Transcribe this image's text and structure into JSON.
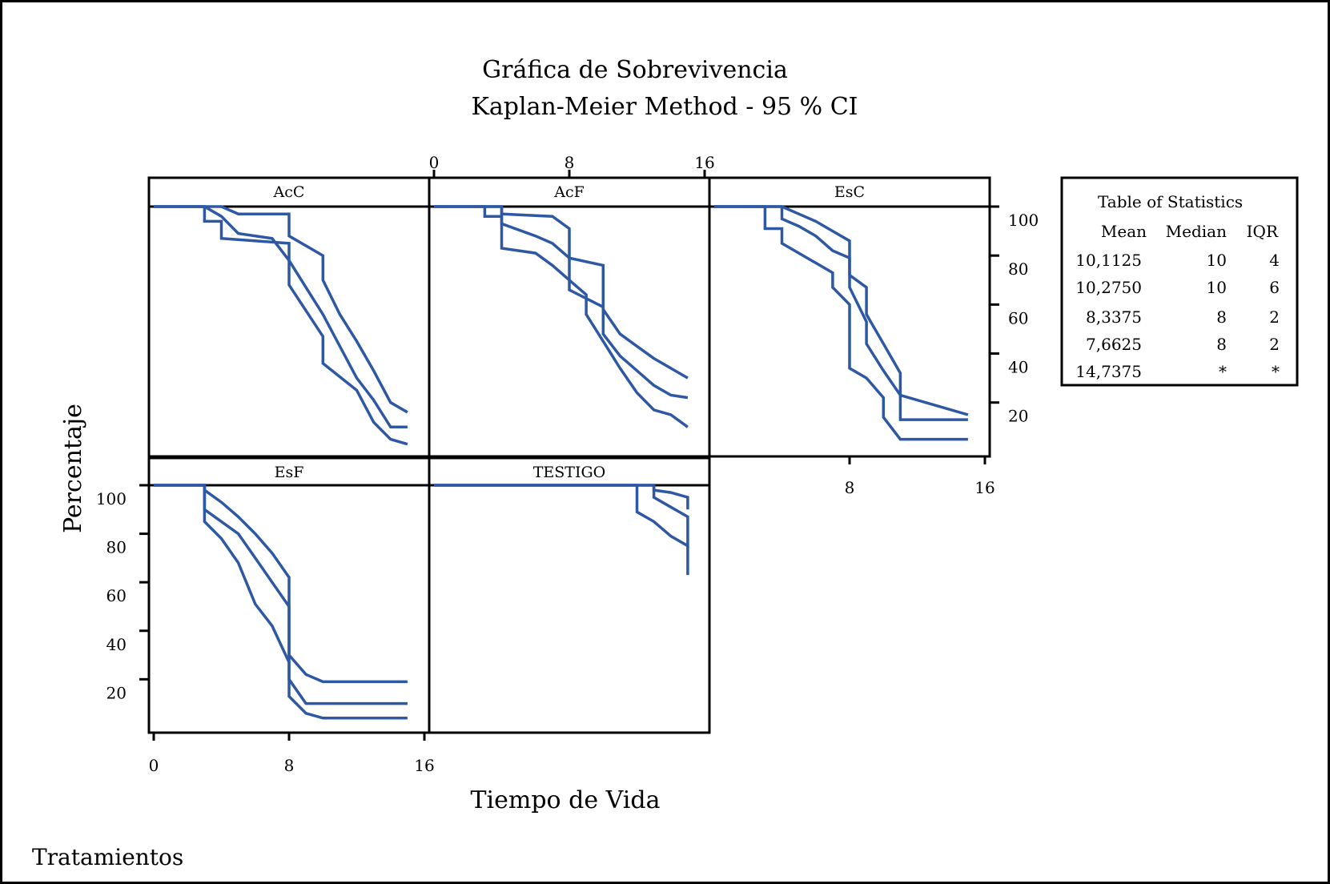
{
  "chart_data": {
    "type": "line",
    "title": "Gráfica de Sobrevivencia",
    "subtitle": "Kaplan-Meier Method - 95 % CI",
    "xlabel": "Tiempo de Vida",
    "ylabel": "Percentaje",
    "grouping_label": "Tratamientos",
    "xlim": [
      0,
      16
    ],
    "ylim": [
      0,
      102
    ],
    "x_ticks": [
      "0",
      "8",
      "16"
    ],
    "y_ticks": [
      "20",
      "40",
      "60",
      "80",
      "100"
    ],
    "line_color": "#2e58a4",
    "panels": [
      {
        "name": "AcC",
        "survival": [
          [
            0,
            100
          ],
          [
            3,
            100
          ],
          [
            4,
            96
          ],
          [
            5,
            89
          ],
          [
            7,
            87
          ],
          [
            8,
            78
          ],
          [
            9,
            67
          ],
          [
            10,
            56
          ],
          [
            11,
            43
          ],
          [
            12,
            30
          ],
          [
            13,
            21
          ],
          [
            14,
            10
          ],
          [
            15,
            10
          ]
        ],
        "upper": [
          [
            0,
            100
          ],
          [
            4,
            100
          ],
          [
            5,
            97
          ],
          [
            8,
            97
          ],
          [
            8,
            88
          ],
          [
            10,
            80
          ],
          [
            10,
            70
          ],
          [
            11,
            56
          ],
          [
            12,
            45
          ],
          [
            13,
            33
          ],
          [
            14,
            20
          ],
          [
            15,
            16
          ]
        ],
        "lower": [
          [
            0,
            100
          ],
          [
            3,
            100
          ],
          [
            3,
            94
          ],
          [
            4,
            94
          ],
          [
            4,
            87
          ],
          [
            8,
            85
          ],
          [
            8,
            68
          ],
          [
            10,
            47
          ],
          [
            10,
            36
          ],
          [
            12,
            25
          ],
          [
            13,
            12
          ],
          [
            14,
            5
          ],
          [
            15,
            3
          ]
        ]
      },
      {
        "name": "AcF",
        "survival": [
          [
            0,
            100
          ],
          [
            4,
            100
          ],
          [
            4,
            93
          ],
          [
            6,
            88
          ],
          [
            7,
            85
          ],
          [
            8,
            79
          ],
          [
            8,
            66
          ],
          [
            10,
            59
          ],
          [
            10,
            48
          ],
          [
            11,
            39
          ],
          [
            12,
            33
          ],
          [
            13,
            27
          ],
          [
            14,
            23
          ],
          [
            15,
            22
          ]
        ],
        "upper": [
          [
            0,
            100
          ],
          [
            4,
            100
          ],
          [
            4,
            97
          ],
          [
            7,
            96
          ],
          [
            8,
            91
          ],
          [
            8,
            79
          ],
          [
            10,
            76
          ],
          [
            10,
            58
          ],
          [
            11,
            48
          ],
          [
            12,
            43
          ],
          [
            13,
            38
          ],
          [
            14,
            34
          ],
          [
            15,
            30
          ]
        ],
        "lower": [
          [
            0,
            100
          ],
          [
            3,
            100
          ],
          [
            3,
            96
          ],
          [
            4,
            96
          ],
          [
            4,
            83
          ],
          [
            6,
            81
          ],
          [
            7,
            76
          ],
          [
            8,
            70
          ],
          [
            9,
            64
          ],
          [
            9,
            56
          ],
          [
            10,
            45
          ],
          [
            11,
            34
          ],
          [
            12,
            24
          ],
          [
            13,
            17
          ],
          [
            14,
            15
          ],
          [
            15,
            10
          ]
        ]
      },
      {
        "name": "EsC",
        "survival": [
          [
            0,
            100
          ],
          [
            4,
            100
          ],
          [
            4,
            95
          ],
          [
            5,
            92
          ],
          [
            6,
            88
          ],
          [
            7,
            82
          ],
          [
            8,
            79
          ],
          [
            8,
            67
          ],
          [
            9,
            53
          ],
          [
            9,
            44
          ],
          [
            10,
            33
          ],
          [
            11,
            23
          ],
          [
            11,
            13
          ],
          [
            15,
            13
          ]
        ],
        "upper": [
          [
            0,
            100
          ],
          [
            4,
            100
          ],
          [
            5,
            97
          ],
          [
            6,
            94
          ],
          [
            7,
            90
          ],
          [
            8,
            86
          ],
          [
            8,
            72
          ],
          [
            9,
            67
          ],
          [
            9,
            56
          ],
          [
            10,
            44
          ],
          [
            11,
            32
          ],
          [
            11,
            23
          ],
          [
            15,
            15
          ]
        ],
        "lower": [
          [
            0,
            100
          ],
          [
            3,
            100
          ],
          [
            3,
            91
          ],
          [
            4,
            91
          ],
          [
            4,
            85
          ],
          [
            5,
            81
          ],
          [
            6,
            77
          ],
          [
            7,
            73
          ],
          [
            7,
            67
          ],
          [
            8,
            60
          ],
          [
            8,
            34
          ],
          [
            9,
            30
          ],
          [
            10,
            22
          ],
          [
            10,
            14
          ],
          [
            11,
            5
          ],
          [
            15,
            5
          ]
        ]
      },
      {
        "name": "EsF",
        "survival": [
          [
            0,
            100
          ],
          [
            3,
            100
          ],
          [
            3,
            90
          ],
          [
            4,
            85
          ],
          [
            5,
            80
          ],
          [
            6,
            70
          ],
          [
            7,
            60
          ],
          [
            8,
            50
          ],
          [
            8,
            20
          ],
          [
            9,
            10
          ],
          [
            15,
            10
          ]
        ],
        "upper": [
          [
            0,
            100
          ],
          [
            3,
            100
          ],
          [
            3,
            98
          ],
          [
            4,
            93
          ],
          [
            5,
            87
          ],
          [
            6,
            80
          ],
          [
            7,
            72
          ],
          [
            8,
            62
          ],
          [
            8,
            30
          ],
          [
            9,
            22
          ],
          [
            10,
            19
          ],
          [
            15,
            19
          ]
        ],
        "lower": [
          [
            0,
            100
          ],
          [
            3,
            100
          ],
          [
            3,
            85
          ],
          [
            4,
            78
          ],
          [
            5,
            68
          ],
          [
            6,
            51
          ],
          [
            7,
            42
          ],
          [
            8,
            27
          ],
          [
            8,
            13
          ],
          [
            9,
            6
          ],
          [
            10,
            4
          ],
          [
            15,
            4
          ]
        ]
      },
      {
        "name": "TESTIGO",
        "survival": [
          [
            0,
            100
          ],
          [
            13,
            100
          ],
          [
            13,
            95
          ],
          [
            14,
            91
          ],
          [
            15,
            87
          ],
          [
            15,
            74
          ]
        ],
        "upper": [
          [
            0,
            100
          ],
          [
            13,
            100
          ],
          [
            13,
            98
          ],
          [
            14,
            97
          ],
          [
            15,
            95
          ],
          [
            15,
            90
          ]
        ],
        "lower": [
          [
            0,
            100
          ],
          [
            12,
            100
          ],
          [
            12,
            89
          ],
          [
            13,
            85
          ],
          [
            14,
            79
          ],
          [
            15,
            75
          ],
          [
            15,
            63
          ]
        ]
      }
    ],
    "statistics_table": {
      "title": "Table of Statistics",
      "columns": [
        "Mean",
        "Median",
        "IQR"
      ],
      "rows": [
        [
          "10,1125",
          "10",
          "4"
        ],
        [
          "10,2750",
          "10",
          "6"
        ],
        [
          "8,3375",
          "8",
          "2"
        ],
        [
          "7,6625",
          "8",
          "2"
        ],
        [
          "14,7375",
          "*",
          "*"
        ]
      ]
    }
  }
}
